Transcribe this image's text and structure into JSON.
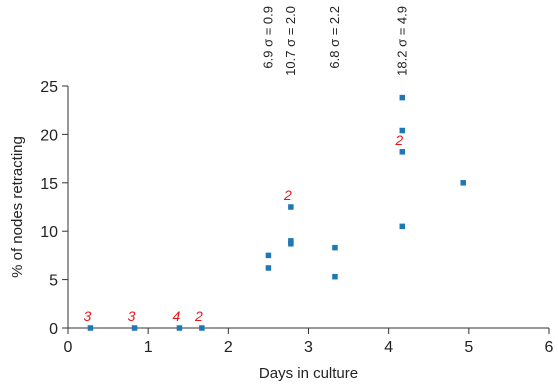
{
  "chart_data": {
    "type": "scatter",
    "xlabel": "Days in culture",
    "ylabel": "% of nodes retracting",
    "xlim": [
      0,
      6
    ],
    "ylim": [
      0,
      25
    ],
    "xticks": [
      "0",
      "1",
      "2",
      "3",
      "4",
      "5",
      "6"
    ],
    "yticks": [
      "0",
      "5",
      "10",
      "15",
      "20",
      "25"
    ],
    "grid": false,
    "marker_color": "#1f77b4",
    "annotation_color": "#e8151b",
    "points": [
      {
        "x": 0.28,
        "y": 0
      },
      {
        "x": 0.83,
        "y": 0
      },
      {
        "x": 1.39,
        "y": 0
      },
      {
        "x": 1.67,
        "y": 0
      },
      {
        "x": 2.5,
        "y": 7.5
      },
      {
        "x": 2.5,
        "y": 6.2
      },
      {
        "x": 2.78,
        "y": 12.5
      },
      {
        "x": 2.78,
        "y": 9.0
      },
      {
        "x": 2.78,
        "y": 8.7
      },
      {
        "x": 3.33,
        "y": 8.3
      },
      {
        "x": 3.33,
        "y": 5.3
      },
      {
        "x": 4.17,
        "y": 23.8
      },
      {
        "x": 4.17,
        "y": 20.4
      },
      {
        "x": 4.17,
        "y": 18.2
      },
      {
        "x": 4.17,
        "y": 10.5
      },
      {
        "x": 4.93,
        "y": 15.0
      }
    ],
    "count_annotations": [
      {
        "text": "3",
        "x": 0.28,
        "y": 0
      },
      {
        "text": "3",
        "x": 0.83,
        "y": 0
      },
      {
        "text": "4",
        "x": 1.39,
        "y": 0
      },
      {
        "text": "2",
        "x": 1.67,
        "y": 0
      },
      {
        "text": "2",
        "x": 2.78,
        "y": 12.5
      },
      {
        "text": "2",
        "x": 4.17,
        "y": 18.2
      }
    ],
    "stat_annotations": [
      {
        "text": "6.9 σ = 0.9",
        "x": 2.5
      },
      {
        "text": "10.7 σ = 2.0",
        "x": 2.78
      },
      {
        "text": "6.8 σ = 2.2",
        "x": 3.33
      },
      {
        "text": "18.2 σ = 4.9",
        "x": 4.17
      }
    ]
  }
}
